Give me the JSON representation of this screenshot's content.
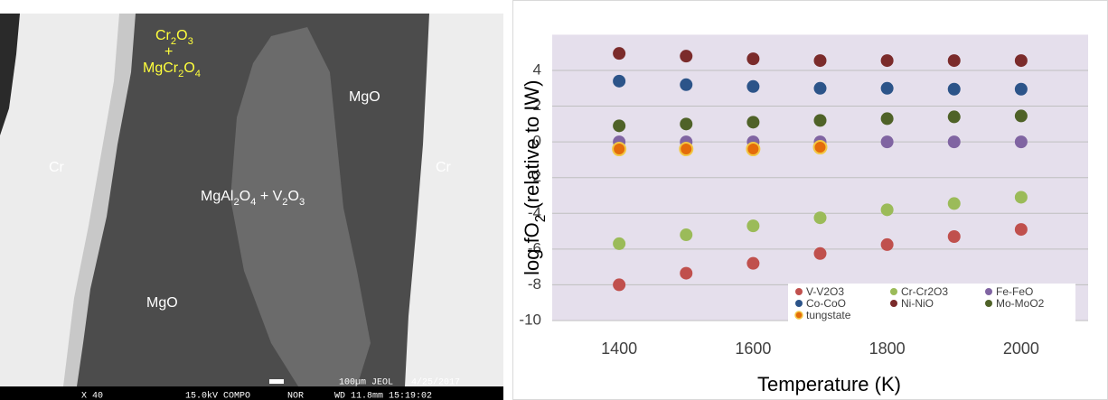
{
  "micrograph": {
    "labels": [
      "Cr2O3",
      "+",
      "MgCr2O4",
      "MgO",
      "Cr",
      "MgAl2O4 + V2O3",
      "Cr",
      "MgO"
    ],
    "footer": [
      "100µm JEOL",
      "4/25/2017",
      "X 40",
      "15.0kV COMPO",
      "NOR",
      "WD 11.8mm 15:19:02"
    ]
  },
  "chart_data": {
    "type": "scatter",
    "xlabel": "Temperature (K)",
    "ylabel": "log fO2 (relative to IW)",
    "xlim": [
      1300,
      2100
    ],
    "xticks": [
      1400,
      1600,
      1800,
      2000
    ],
    "ylim": [
      -10,
      6
    ],
    "yticks": [
      -10,
      -8,
      -6,
      -4,
      -2,
      0,
      2,
      4
    ],
    "grid": true,
    "legend": "lower right",
    "series": [
      {
        "name": "V-V2O3",
        "color": "#c0504d",
        "x": [
          1400,
          1500,
          1600,
          1700,
          1800,
          1900,
          2000
        ],
        "values": [
          -8,
          -7.35,
          -6.8,
          -6.25,
          -5.75,
          -5.3,
          -4.9
        ]
      },
      {
        "name": "Cr-Cr2O3",
        "color": "#9bbb59",
        "x": [
          1400,
          1500,
          1600,
          1700,
          1800,
          1900,
          2000
        ],
        "values": [
          -5.7,
          -5.2,
          -4.7,
          -4.25,
          -3.8,
          -3.45,
          -3.1
        ]
      },
      {
        "name": "Fe-FeO",
        "color": "#8064a2",
        "x": [
          1400,
          1500,
          1600,
          1700,
          1800,
          1900,
          2000
        ],
        "values": [
          0,
          0,
          0,
          0,
          0,
          0,
          0
        ]
      },
      {
        "name": "Co-CoO",
        "color": "#2c5489",
        "x": [
          1400,
          1500,
          1600,
          1700,
          1800,
          1900,
          2000
        ],
        "values": [
          3.4,
          3.2,
          3.1,
          3.0,
          3.0,
          2.95,
          2.95
        ]
      },
      {
        "name": "Ni-NiO",
        "color": "#7b2b2b",
        "x": [
          1400,
          1500,
          1600,
          1700,
          1800,
          1900,
          2000
        ],
        "values": [
          4.95,
          4.8,
          4.65,
          4.55,
          4.55,
          4.55,
          4.55
        ]
      },
      {
        "name": "Mo-MoO2",
        "color": "#4f6228",
        "x": [
          1400,
          1500,
          1600,
          1700,
          1800,
          1900,
          2000
        ],
        "values": [
          0.9,
          1.0,
          1.1,
          1.2,
          1.3,
          1.4,
          1.45
        ]
      },
      {
        "name": "tungstate",
        "color": "#e46c0a",
        "edgecolor": "#f2c744",
        "x": [
          1400,
          1500,
          1600,
          1700
        ],
        "values": [
          -0.4,
          -0.4,
          -0.4,
          -0.3
        ]
      }
    ]
  }
}
